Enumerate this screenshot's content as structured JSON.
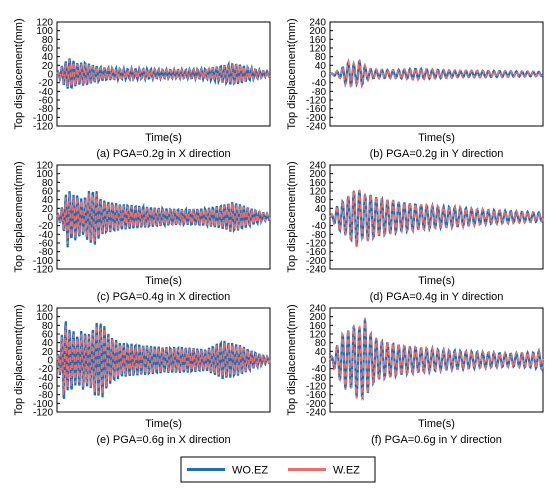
{
  "figure": {
    "legend": [
      "WO.EZ",
      "W.EZ"
    ],
    "colors": {
      "WO.EZ": "#1f6fb4",
      "W.EZ": "#ee6e6e"
    }
  },
  "chart_data": [
    {
      "type": "line",
      "panel": "a",
      "caption": "(a) PGA=0.2g in X direction",
      "xlabel": "Time(s)",
      "ylabel": "Top displacement(mm)",
      "ylim": [
        -120,
        120
      ],
      "yticks": [
        -120,
        -100,
        -80,
        -60,
        -40,
        -20,
        0,
        20,
        40,
        60,
        80,
        100,
        120
      ],
      "grid": false,
      "series": [
        {
          "name": "WO.EZ",
          "x": [
            0,
            0.03,
            0.06,
            0.08,
            0.1,
            0.13,
            0.17,
            0.22,
            0.3,
            0.4,
            0.5,
            0.6,
            0.7,
            0.78,
            0.82,
            0.86,
            0.92,
            1.0
          ],
          "y": [
            0,
            25,
            38,
            -30,
            25,
            -28,
            20,
            -15,
            12,
            -12,
            10,
            -10,
            12,
            -20,
            25,
            -22,
            12,
            5
          ]
        },
        {
          "name": "W.EZ",
          "x": [
            0,
            0.03,
            0.06,
            0.08,
            0.1,
            0.13,
            0.17,
            0.22,
            0.3,
            0.4,
            0.5,
            0.6,
            0.7,
            0.78,
            0.82,
            0.86,
            0.92,
            1.0
          ],
          "y": [
            0,
            22,
            34,
            -27,
            22,
            -25,
            18,
            -14,
            11,
            -11,
            9,
            -9,
            11,
            -18,
            22,
            -20,
            11,
            5
          ]
        }
      ]
    },
    {
      "type": "line",
      "panel": "b",
      "caption": "(b) PGA=0.2g in Y direction",
      "xlabel": "Time(s)",
      "ylabel": "Top displacement(mm)",
      "ylim": [
        -240,
        240
      ],
      "yticks": [
        -240,
        -200,
        -160,
        -120,
        -80,
        -40,
        0,
        40,
        80,
        120,
        160,
        200,
        240
      ],
      "grid": false,
      "series": [
        {
          "name": "WO.EZ",
          "x": [
            0,
            0.05,
            0.08,
            0.1,
            0.12,
            0.14,
            0.17,
            0.2,
            0.3,
            0.4,
            0.5,
            0.6,
            0.7,
            0.8,
            0.9,
            1.0
          ],
          "y": [
            0,
            20,
            -55,
            55,
            -40,
            65,
            -30,
            20,
            -18,
            25,
            -20,
            15,
            -15,
            14,
            -12,
            -10
          ]
        },
        {
          "name": "W.EZ",
          "x": [
            0,
            0.05,
            0.08,
            0.1,
            0.12,
            0.14,
            0.17,
            0.2,
            0.3,
            0.4,
            0.5,
            0.6,
            0.7,
            0.8,
            0.9,
            1.0
          ],
          "y": [
            0,
            22,
            -60,
            58,
            -45,
            70,
            -32,
            22,
            -20,
            27,
            -22,
            17,
            -16,
            15,
            -13,
            -10
          ]
        }
      ]
    },
    {
      "type": "line",
      "panel": "c",
      "caption": "(c) PGA=0.4g in X direction",
      "xlabel": "Time(s)",
      "ylabel": "Top displacement(mm)",
      "ylim": [
        -120,
        120
      ],
      "yticks": [
        -120,
        -100,
        -80,
        -60,
        -40,
        -20,
        0,
        20,
        40,
        60,
        80,
        100,
        120
      ],
      "grid": false,
      "series": [
        {
          "name": "WO.EZ",
          "x": [
            0,
            0.03,
            0.05,
            0.07,
            0.09,
            0.12,
            0.15,
            0.18,
            0.21,
            0.25,
            0.3,
            0.4,
            0.5,
            0.6,
            0.7,
            0.78,
            0.82,
            0.86,
            0.92,
            1.0
          ],
          "y": [
            0,
            30,
            70,
            -50,
            55,
            -40,
            60,
            -65,
            40,
            -35,
            30,
            -25,
            20,
            -18,
            20,
            -28,
            35,
            -30,
            18,
            5
          ]
        },
        {
          "name": "W.EZ",
          "x": [
            0,
            0.03,
            0.05,
            0.07,
            0.09,
            0.12,
            0.15,
            0.18,
            0.21,
            0.25,
            0.3,
            0.4,
            0.5,
            0.6,
            0.7,
            0.78,
            0.82,
            0.86,
            0.92,
            1.0
          ],
          "y": [
            0,
            27,
            62,
            -45,
            50,
            -36,
            54,
            -58,
            36,
            -32,
            27,
            -22,
            18,
            -16,
            18,
            -25,
            32,
            -27,
            16,
            5
          ]
        }
      ]
    },
    {
      "type": "line",
      "panel": "d",
      "caption": "(d) PGA=0.4g in Y direction",
      "xlabel": "Time(s)",
      "ylabel": "Top displacement(mm)",
      "ylim": [
        -240,
        240
      ],
      "yticks": [
        -240,
        -200,
        -160,
        -120,
        -80,
        -40,
        0,
        40,
        80,
        120,
        160,
        200,
        240
      ],
      "grid": false,
      "series": [
        {
          "name": "WO.EZ",
          "x": [
            0,
            0.04,
            0.07,
            0.09,
            0.11,
            0.13,
            0.15,
            0.18,
            0.22,
            0.27,
            0.32,
            0.4,
            0.5,
            0.6,
            0.7,
            0.8,
            0.9,
            1.0
          ],
          "y": [
            0,
            60,
            -80,
            100,
            -120,
            140,
            -100,
            110,
            -90,
            80,
            -70,
            60,
            -50,
            45,
            -35,
            30,
            -25,
            -20
          ]
        },
        {
          "name": "W.EZ",
          "x": [
            0,
            0.04,
            0.07,
            0.09,
            0.11,
            0.13,
            0.15,
            0.18,
            0.22,
            0.27,
            0.32,
            0.4,
            0.5,
            0.6,
            0.7,
            0.8,
            0.9,
            1.0
          ],
          "y": [
            0,
            62,
            -84,
            104,
            -124,
            145,
            -104,
            114,
            -93,
            83,
            -72,
            62,
            -52,
            46,
            -36,
            31,
            -26,
            -20
          ]
        }
      ]
    },
    {
      "type": "line",
      "panel": "e",
      "caption": "(e) PGA=0.6g in X direction",
      "xlabel": "Time(s)",
      "ylabel": "Top displacement(mm)",
      "ylim": [
        -120,
        120
      ],
      "yticks": [
        -120,
        -100,
        -80,
        -60,
        -40,
        -20,
        0,
        20,
        40,
        60,
        80,
        100,
        120
      ],
      "grid": false,
      "series": [
        {
          "name": "WO.EZ",
          "x": [
            0,
            0.02,
            0.035,
            0.05,
            0.07,
            0.09,
            0.12,
            0.15,
            0.18,
            0.21,
            0.25,
            0.3,
            0.4,
            0.5,
            0.6,
            0.7,
            0.78,
            0.82,
            0.86,
            0.92,
            1.0
          ],
          "y": [
            0,
            50,
            110,
            -70,
            75,
            -55,
            70,
            -60,
            85,
            -90,
            55,
            -40,
            35,
            -30,
            30,
            -25,
            -45,
            40,
            -35,
            20,
            5
          ]
        },
        {
          "name": "W.EZ",
          "x": [
            0,
            0.02,
            0.035,
            0.05,
            0.07,
            0.09,
            0.12,
            0.15,
            0.18,
            0.21,
            0.25,
            0.3,
            0.4,
            0.5,
            0.6,
            0.7,
            0.78,
            0.82,
            0.86,
            0.92,
            1.0
          ],
          "y": [
            0,
            45,
            100,
            -64,
            68,
            -50,
            63,
            -55,
            78,
            -82,
            50,
            -36,
            32,
            -27,
            27,
            -22,
            -40,
            36,
            -32,
            18,
            5
          ]
        }
      ]
    },
    {
      "type": "line",
      "panel": "f",
      "caption": "(f) PGA=0.6g in Y direction",
      "xlabel": "Time(s)",
      "ylabel": "Top displacement(mm)",
      "ylim": [
        -240,
        240
      ],
      "yticks": [
        -240,
        -200,
        -160,
        -120,
        -80,
        -40,
        0,
        40,
        80,
        120,
        160,
        200,
        240
      ],
      "grid": false,
      "series": [
        {
          "name": "WO.EZ",
          "x": [
            0,
            0.03,
            0.06,
            0.08,
            0.1,
            0.12,
            0.14,
            0.16,
            0.19,
            0.23,
            0.28,
            0.35,
            0.45,
            0.55,
            0.65,
            0.75,
            0.85,
            0.95,
            1.0
          ],
          "y": [
            0,
            60,
            -120,
            140,
            -130,
            180,
            -150,
            200,
            -120,
            90,
            -80,
            65,
            -55,
            45,
            -40,
            35,
            -30,
            35,
            -45
          ]
        },
        {
          "name": "W.EZ",
          "x": [
            0,
            0.03,
            0.06,
            0.08,
            0.1,
            0.12,
            0.14,
            0.16,
            0.19,
            0.23,
            0.28,
            0.35,
            0.45,
            0.55,
            0.65,
            0.75,
            0.85,
            0.95,
            1.0
          ],
          "y": [
            0,
            63,
            -126,
            146,
            -135,
            186,
            -155,
            206,
            -124,
            93,
            -83,
            67,
            -57,
            46,
            -41,
            36,
            -31,
            36,
            -45
          ]
        }
      ]
    }
  ]
}
